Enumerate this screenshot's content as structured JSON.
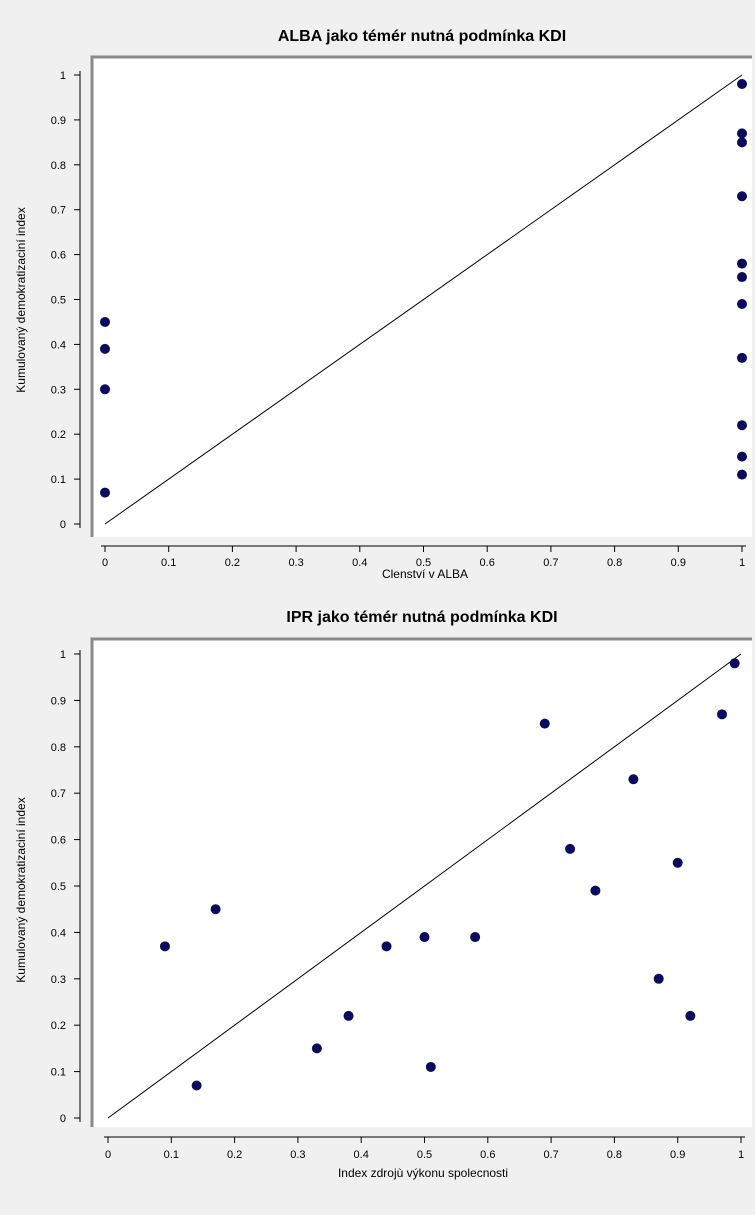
{
  "chart_data": [
    {
      "type": "scatter",
      "title": "ALBA jako témér nutná podmínka KDI",
      "xlabel": "Clenství v ALBA",
      "ylabel": "Kumulovaný demokratizaciní index",
      "xlim": [
        0,
        1
      ],
      "ylim": [
        0,
        1
      ],
      "ticks": [
        "0",
        "0.1",
        "0.2",
        "0.3",
        "0.4",
        "0.5",
        "0.6",
        "0.7",
        "0.8",
        "0.9",
        "1"
      ],
      "grid": false,
      "points": [
        {
          "x": 0,
          "y": 0.45
        },
        {
          "x": 0,
          "y": 0.39
        },
        {
          "x": 0,
          "y": 0.3
        },
        {
          "x": 0,
          "y": 0.07
        },
        {
          "x": 1,
          "y": 0.98
        },
        {
          "x": 1,
          "y": 0.87
        },
        {
          "x": 1,
          "y": 0.85
        },
        {
          "x": 1,
          "y": 0.73
        },
        {
          "x": 1,
          "y": 0.58
        },
        {
          "x": 1,
          "y": 0.55
        },
        {
          "x": 1,
          "y": 0.49
        },
        {
          "x": 1,
          "y": 0.37
        },
        {
          "x": 1,
          "y": 0.22
        },
        {
          "x": 1,
          "y": 0.15
        },
        {
          "x": 1,
          "y": 0.11
        }
      ],
      "reference_line": {
        "from": [
          0,
          0
        ],
        "to": [
          1,
          1
        ]
      },
      "colors": {
        "points": "#0b0b5e",
        "line": "#000000",
        "plot_bg": "#ffffff"
      }
    },
    {
      "type": "scatter",
      "title": "IPR jako témér nutná podmínka KDI",
      "xlabel": "Index zdrojù výkonu spolecnosti",
      "ylabel": "Kumulovaný demokratizaciní index",
      "xlim": [
        0,
        1
      ],
      "ylim": [
        0,
        1
      ],
      "ticks": [
        "0",
        "0.1",
        "0.2",
        "0.3",
        "0.4",
        "0.5",
        "0.6",
        "0.7",
        "0.8",
        "0.9",
        "1"
      ],
      "grid": false,
      "points": [
        {
          "x": 0.09,
          "y": 0.37
        },
        {
          "x": 0.14,
          "y": 0.07
        },
        {
          "x": 0.17,
          "y": 0.45
        },
        {
          "x": 0.33,
          "y": 0.15
        },
        {
          "x": 0.38,
          "y": 0.22
        },
        {
          "x": 0.44,
          "y": 0.37
        },
        {
          "x": 0.5,
          "y": 0.39
        },
        {
          "x": 0.51,
          "y": 0.11
        },
        {
          "x": 0.58,
          "y": 0.39
        },
        {
          "x": 0.69,
          "y": 0.85
        },
        {
          "x": 0.73,
          "y": 0.58
        },
        {
          "x": 0.77,
          "y": 0.49
        },
        {
          "x": 0.83,
          "y": 0.73
        },
        {
          "x": 0.87,
          "y": 0.3
        },
        {
          "x": 0.9,
          "y": 0.55
        },
        {
          "x": 0.92,
          "y": 0.22
        },
        {
          "x": 0.97,
          "y": 0.87
        },
        {
          "x": 0.99,
          "y": 0.98
        }
      ],
      "reference_line": {
        "from": [
          0,
          0
        ],
        "to": [
          1,
          1
        ]
      },
      "colors": {
        "points": "#0b0b5e",
        "line": "#000000",
        "plot_bg": "#ffffff"
      }
    }
  ]
}
